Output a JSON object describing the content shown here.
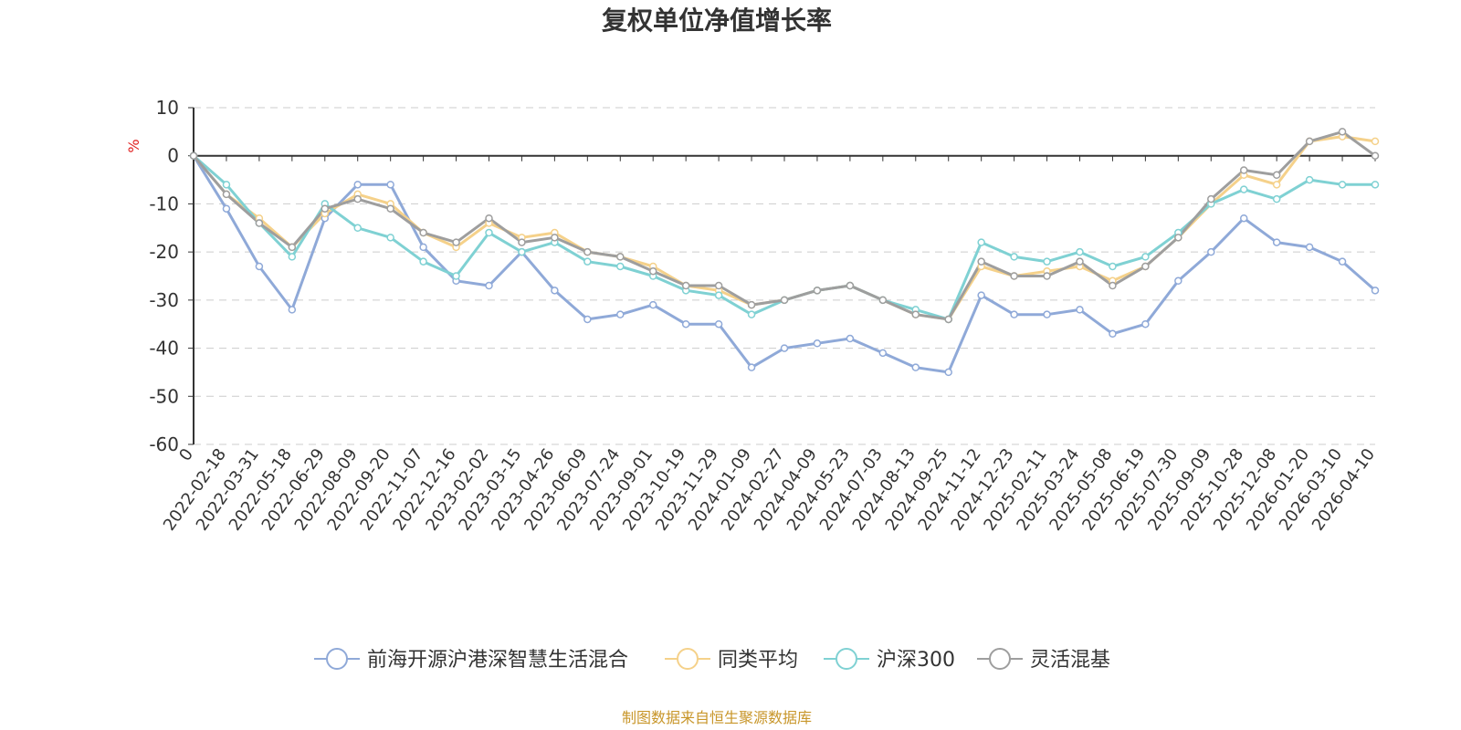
{
  "chart_data": {
    "type": "line",
    "title": "复权单位净值增长率",
    "ylabel": "%",
    "ylim": [
      -60,
      10
    ],
    "yticks": [
      10,
      0,
      -10,
      -20,
      -30,
      -40,
      -50,
      -60
    ],
    "categories": [
      "0",
      "2022-02-18",
      "2022-03-31",
      "2022-05-18",
      "2022-06-29",
      "2022-08-09",
      "2022-09-20",
      "2022-11-07",
      "2022-12-16",
      "2023-02-02",
      "2023-03-15",
      "2023-04-26",
      "2023-06-09",
      "2023-07-24",
      "2023-09-01",
      "2023-10-19",
      "2023-11-29",
      "2024-01-09",
      "2024-02-27",
      "2024-04-09",
      "2024-05-23",
      "2024-07-03",
      "2024-08-13",
      "2024-09-25",
      "2024-11-12",
      "2024-12-23",
      "2025-02-11",
      "2025-03-24",
      "2025-05-08",
      "2025-06-19",
      "2025-07-30",
      "2025-09-09",
      "2025-10-28",
      "2025-12-08",
      "2026-01-20",
      "2026-03-10",
      "2026-04-10"
    ],
    "grid": true,
    "legend_position": "bottom",
    "series": [
      {
        "name": "前海开源沪港深智慧生活混合",
        "color": "#8fa9d8",
        "values": [
          0,
          -11,
          -23,
          -32,
          -13,
          -6,
          -6,
          -19,
          -26,
          -27,
          -20,
          -28,
          -34,
          -33,
          -31,
          -35,
          -35,
          -44,
          -40,
          -39,
          -38,
          -41,
          -44,
          -45,
          -29,
          -33,
          -33,
          -32,
          -37,
          -35,
          -26,
          -20,
          -13,
          -18,
          -19,
          -22,
          -28
        ]
      },
      {
        "name": "同类平均",
        "color": "#f5d18a",
        "values": [
          0,
          -8,
          -13,
          -19,
          -12,
          -8,
          -10,
          -16,
          -19,
          -14,
          -17,
          -16,
          -20,
          -21,
          -23,
          -27,
          -28,
          -31,
          -30,
          -28,
          -27,
          -30,
          -33,
          -34,
          -23,
          -25,
          -24,
          -23,
          -26,
          -23,
          -17,
          -10,
          -4,
          -6,
          3,
          4,
          3
        ]
      },
      {
        "name": "沪深300",
        "color": "#7fd1d3",
        "values": [
          0,
          -6,
          -14,
          -21,
          -10,
          -15,
          -17,
          -22,
          -25,
          -16,
          -20,
          -18,
          -22,
          -23,
          -25,
          -28,
          -29,
          -33,
          -30,
          -28,
          -27,
          -30,
          -32,
          -34,
          -18,
          -21,
          -22,
          -20,
          -23,
          -21,
          -16,
          -10,
          -7,
          -9,
          -5,
          -6,
          -6
        ]
      },
      {
        "name": "灵活混基",
        "color": "#9e9e9e",
        "values": [
          0,
          -8,
          -14,
          -19,
          -11,
          -9,
          -11,
          -16,
          -18,
          -13,
          -18,
          -17,
          -20,
          -21,
          -24,
          -27,
          -27,
          -31,
          -30,
          -28,
          -27,
          -30,
          -33,
          -34,
          -22,
          -25,
          -25,
          -22,
          -27,
          -23,
          -17,
          -9,
          -3,
          -4,
          3,
          5,
          0
        ]
      }
    ]
  },
  "source_note": "制图数据来自恒生聚源数据库"
}
